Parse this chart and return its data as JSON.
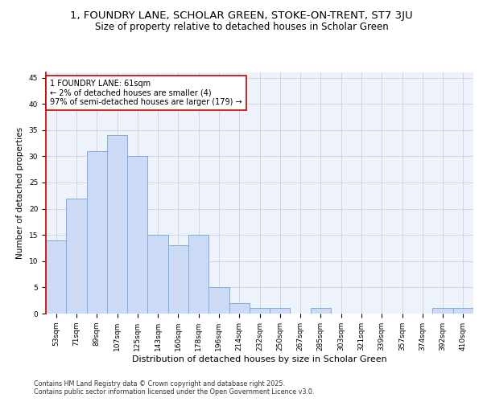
{
  "title": "1, FOUNDRY LANE, SCHOLAR GREEN, STOKE-ON-TRENT, ST7 3JU",
  "subtitle": "Size of property relative to detached houses in Scholar Green",
  "xlabel": "Distribution of detached houses by size in Scholar Green",
  "ylabel": "Number of detached properties",
  "categories": [
    "53sqm",
    "71sqm",
    "89sqm",
    "107sqm",
    "125sqm",
    "143sqm",
    "160sqm",
    "178sqm",
    "196sqm",
    "214sqm",
    "232sqm",
    "250sqm",
    "267sqm",
    "285sqm",
    "303sqm",
    "321sqm",
    "339sqm",
    "357sqm",
    "374sqm",
    "392sqm",
    "410sqm"
  ],
  "values": [
    14,
    22,
    31,
    34,
    30,
    15,
    13,
    15,
    5,
    2,
    1,
    1,
    0,
    1,
    0,
    0,
    0,
    0,
    0,
    1,
    1
  ],
  "bar_color": "#ccdaf5",
  "bar_edge_color": "#7aaee0",
  "highlight_line_color": "#cc0000",
  "annotation_text_line1": "1 FOUNDRY LANE: 61sqm",
  "annotation_text_line2": "← 2% of detached houses are smaller (4)",
  "annotation_text_line3": "97% of semi-detached houses are larger (179) →",
  "ylim": [
    0,
    46
  ],
  "yticks": [
    0,
    5,
    10,
    15,
    20,
    25,
    30,
    35,
    40,
    45
  ],
  "grid_color": "#c8d0e8",
  "background_color": "#eef2fb",
  "title_fontsize": 9.5,
  "subtitle_fontsize": 8.5,
  "xlabel_fontsize": 8,
  "ylabel_fontsize": 7.5,
  "tick_fontsize": 6.5,
  "annotation_fontsize": 7,
  "footer_line1": "Contains HM Land Registry data © Crown copyright and database right 2025.",
  "footer_line2": "Contains public sector information licensed under the Open Government Licence v3.0.",
  "footer_fontsize": 5.8
}
